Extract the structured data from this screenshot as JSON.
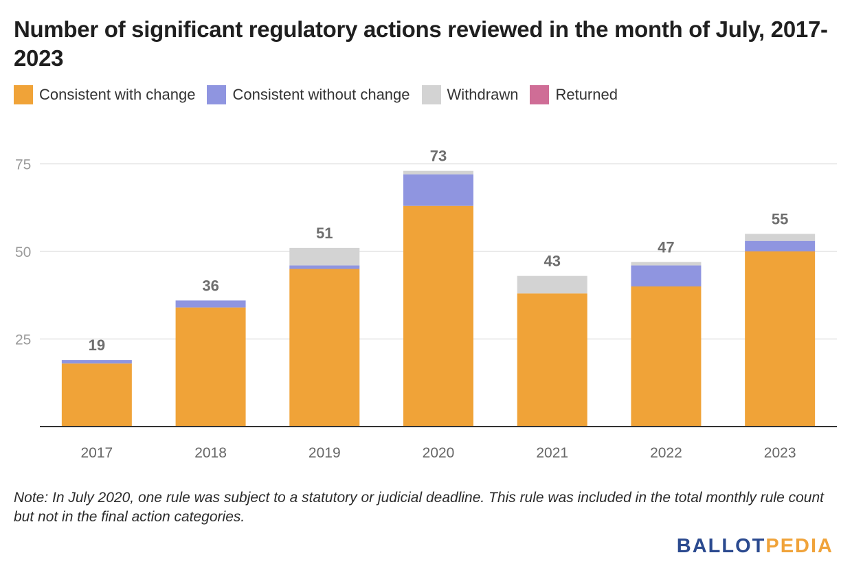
{
  "title": "Number of significant regulatory actions reviewed in the month of July, 2017-2023",
  "legend": [
    {
      "label": "Consistent with change",
      "color": "#f0a338"
    },
    {
      "label": "Consistent without change",
      "color": "#8f95e0"
    },
    {
      "label": "Withdrawn",
      "color": "#d3d3d3"
    },
    {
      "label": "Returned",
      "color": "#cf6d96"
    }
  ],
  "note": "Note: In July 2020, one rule was subject to a statutory or judicial deadline. This rule was included in the total monthly rule count but not in the final action categories.",
  "logo": {
    "part1": "BALLOT",
    "part2": "PEDIA"
  },
  "chart_data": {
    "type": "bar",
    "stacked": true,
    "categories": [
      "2017",
      "2018",
      "2019",
      "2020",
      "2021",
      "2022",
      "2023"
    ],
    "series": [
      {
        "name": "Consistent with change",
        "color": "#f0a338",
        "values": [
          18,
          34,
          45,
          63,
          38,
          40,
          50
        ]
      },
      {
        "name": "Consistent without change",
        "color": "#8f95e0",
        "values": [
          1,
          2,
          1,
          9,
          0,
          6,
          3
        ]
      },
      {
        "name": "Withdrawn",
        "color": "#d3d3d3",
        "values": [
          0,
          0,
          5,
          1,
          5,
          1,
          2
        ]
      },
      {
        "name": "Returned",
        "color": "#cf6d96",
        "values": [
          0,
          0,
          0,
          0,
          0,
          0,
          0
        ]
      }
    ],
    "totals": [
      19,
      36,
      51,
      73,
      43,
      47,
      55
    ],
    "yticks": [
      25,
      50,
      75
    ],
    "ylim": [
      0,
      80
    ],
    "grid": true,
    "legend_position": "top-left"
  }
}
